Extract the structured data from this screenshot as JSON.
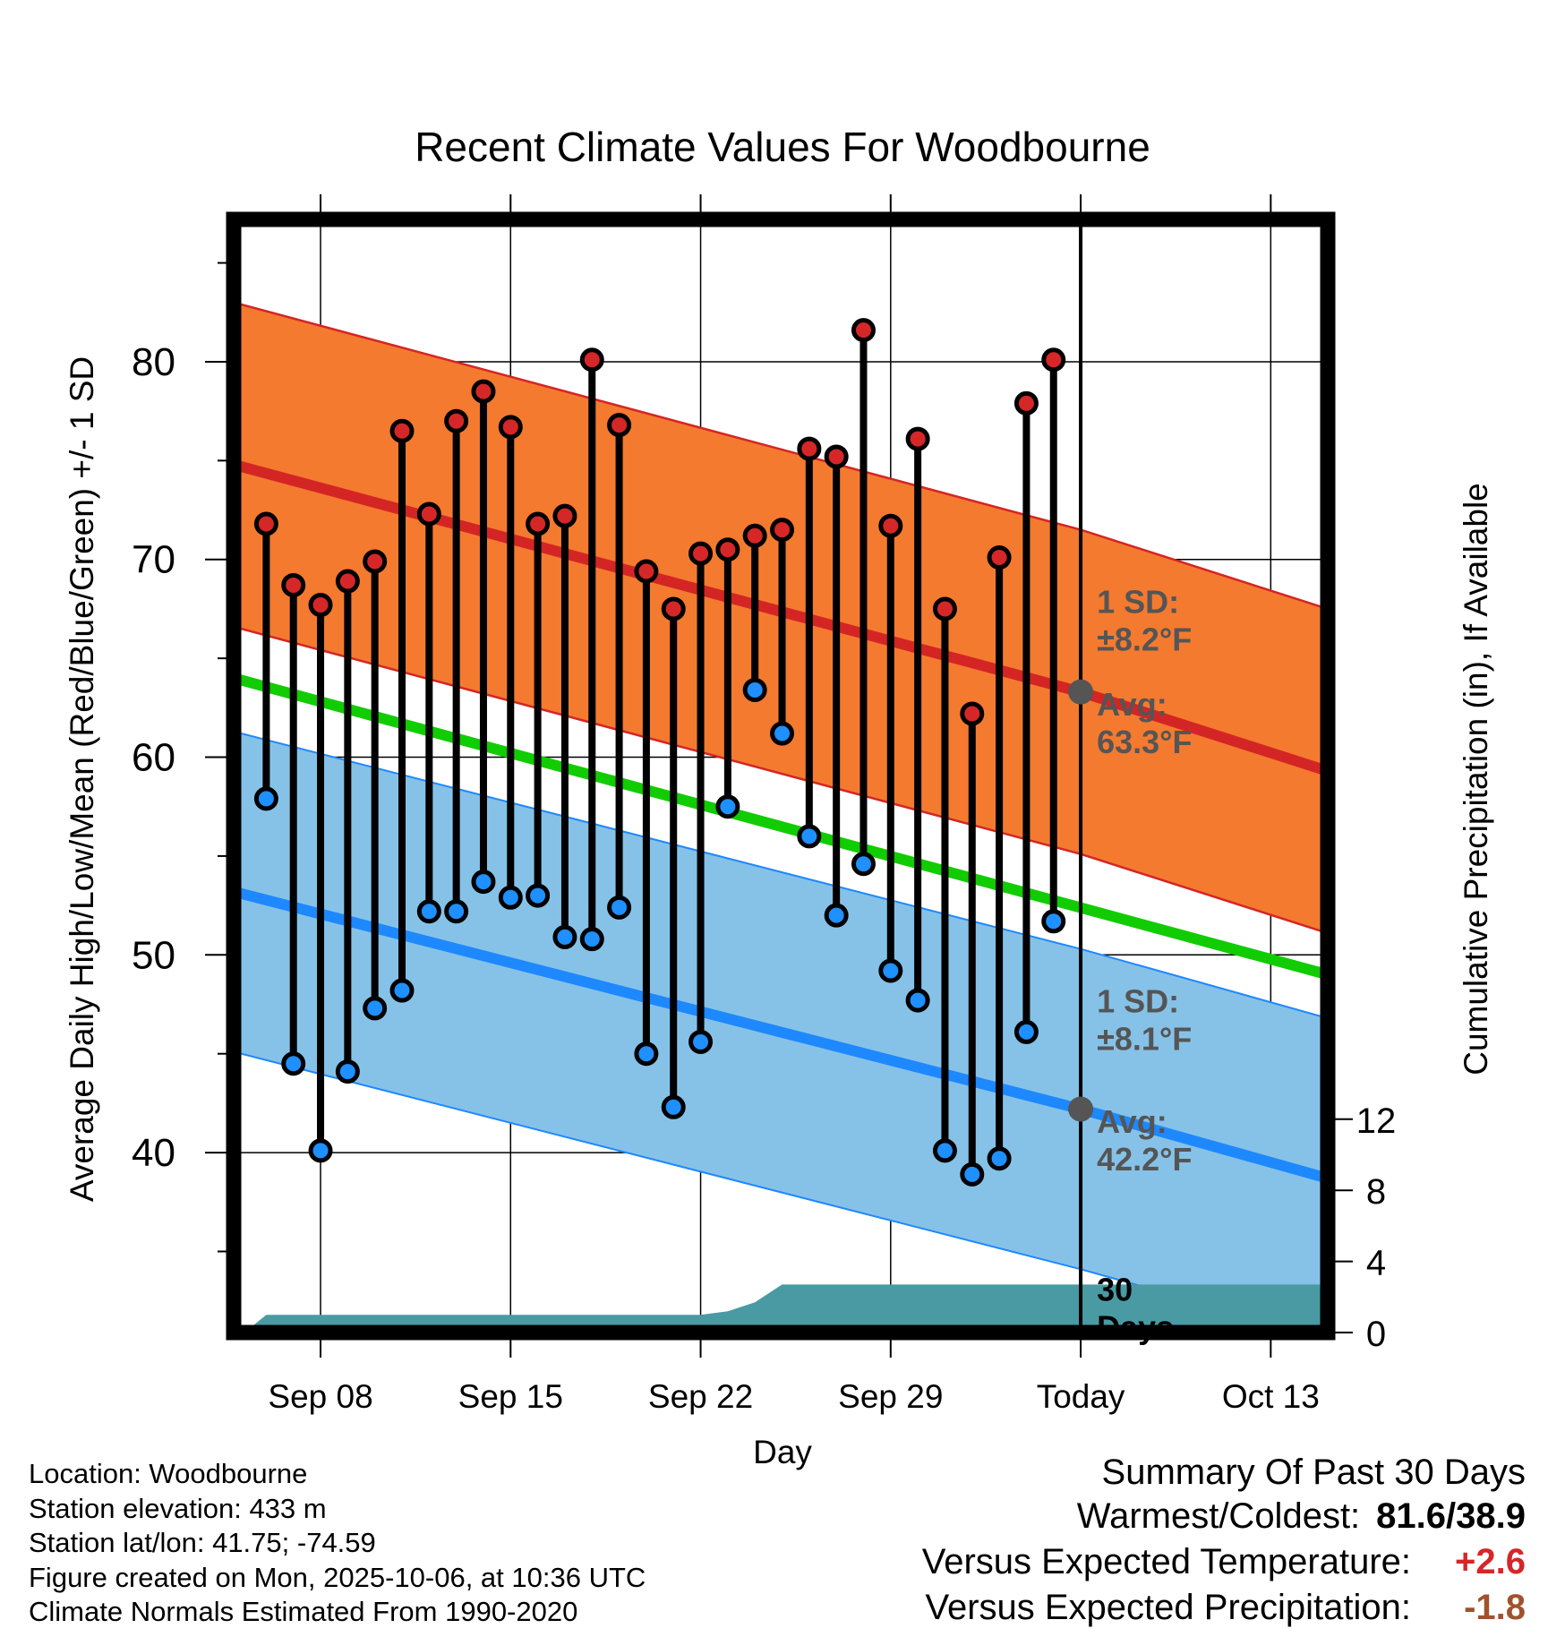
{
  "title": "Recent Climate Values For Woodbourne",
  "colors": {
    "high_band": "#f47a2f",
    "high_line": "#d42525",
    "low_band": "#86c2e8",
    "low_line": "#1e88ff",
    "mean_line": "#11cc00",
    "precip": "#4a9aa3",
    "high_dot": "#d62728",
    "low_dot": "#1e90ff",
    "avg_marker": "#555555",
    "annot_text": "#555555",
    "warm_text": "#d62728",
    "dry_text": "#a0522d"
  },
  "chart_data": {
    "type": "line",
    "title": "Recent Climate Values For Woodbourne",
    "xlabel": "Day",
    "ylabel": "Average Daily High/Low/Mean (Red/Blue/Green) +/- 1 SD",
    "y2label": "Cumulative Precipitation (in), If Available",
    "xlim": [
      -3.2,
      37.1
    ],
    "ylim": [
      30.9,
      87.2
    ],
    "y2lim": [
      0,
      20
    ],
    "x_ticks": [
      {
        "x": 0,
        "label": "Sep 08"
      },
      {
        "x": 7,
        "label": "Sep 15"
      },
      {
        "x": 14,
        "label": "Sep 22"
      },
      {
        "x": 21,
        "label": "Sep 29"
      },
      {
        "x": 28,
        "label": "Today"
      },
      {
        "x": 35,
        "label": "Oct 13"
      }
    ],
    "y_ticks": [
      40,
      50,
      60,
      70,
      80
    ],
    "y2_ticks": [
      0,
      4,
      8,
      12
    ],
    "today_x": 28,
    "normal_high": {
      "x": [
        -3.2,
        28,
        37.1
      ],
      "mean": [
        74.8,
        63.3,
        59.3
      ],
      "sd": 8.2
    },
    "normal_low": {
      "x": [
        -3.2,
        28,
        37.1
      ],
      "mean": [
        53.2,
        42.2,
        38.7
      ],
      "sd": 8.1
    },
    "normal_mean_line": {
      "x": [
        -3.2,
        37.1
      ],
      "y": [
        64.0,
        49.0
      ]
    },
    "days": [
      -2,
      -1,
      0,
      1,
      2,
      3,
      4,
      5,
      6,
      7,
      8,
      9,
      10,
      11,
      12,
      13,
      14,
      15,
      16,
      17,
      18,
      19,
      20,
      21,
      22,
      23,
      24,
      25,
      26,
      27
    ],
    "highs": [
      71.8,
      68.7,
      67.7,
      68.9,
      69.9,
      76.5,
      72.3,
      77.0,
      78.5,
      76.7,
      71.8,
      72.2,
      80.1,
      76.8,
      69.4,
      67.5,
      70.3,
      70.5,
      71.2,
      71.5,
      75.6,
      75.2,
      81.6,
      71.7,
      76.1,
      67.5,
      62.2,
      70.1,
      77.9,
      80.1
    ],
    "lows": [
      57.9,
      44.5,
      40.1,
      44.1,
      47.3,
      48.2,
      52.2,
      52.2,
      53.7,
      52.9,
      53.0,
      50.9,
      50.8,
      52.4,
      45.0,
      42.3,
      45.6,
      57.5,
      63.4,
      61.2,
      56.0,
      52.0,
      54.6,
      49.2,
      47.7,
      40.1,
      38.9,
      39.7,
      46.1,
      51.7
    ],
    "precip_cumulative": {
      "x": [
        -2.8,
        -2.0,
        14.0,
        15.0,
        16.0,
        17.0,
        37.1
      ],
      "y": [
        0.0,
        1.0,
        1.0,
        1.2,
        1.7,
        2.7,
        2.7
      ]
    },
    "annotations": [
      {
        "label": "1 SD:",
        "sub": "±8.2°F",
        "anchor": "high_sd"
      },
      {
        "label": "Avg:",
        "sub": "63.3°F",
        "anchor": "high_avg",
        "value": 63.3
      },
      {
        "label": "1 SD:",
        "sub": "±8.1°F",
        "anchor": "low_sd"
      },
      {
        "label": "Avg:",
        "sub": "42.2°F",
        "anchor": "low_avg",
        "value": 42.2
      },
      {
        "label": "30",
        "sub": "Days",
        "anchor": "days"
      }
    ]
  },
  "metadata": {
    "location": "Location: Woodbourne",
    "elevation": "Station elevation: 433 m",
    "latlon": "Station lat/lon: 41.75; -74.59",
    "created": "Figure created on Mon, 2025-10-06, at 10:36 UTC",
    "normals": "Climate Normals Estimated From 1990-2020"
  },
  "summary": {
    "heading": "Summary Of Past 30 Days",
    "warmest_coldest_label": "Warmest/Coldest:",
    "warmest_coldest_value": "81.6/38.9",
    "temp_label": "Versus Expected Temperature:",
    "temp_value": "+2.6",
    "precip_label": "Versus Expected Precipitation:",
    "precip_value": "-1.8"
  }
}
